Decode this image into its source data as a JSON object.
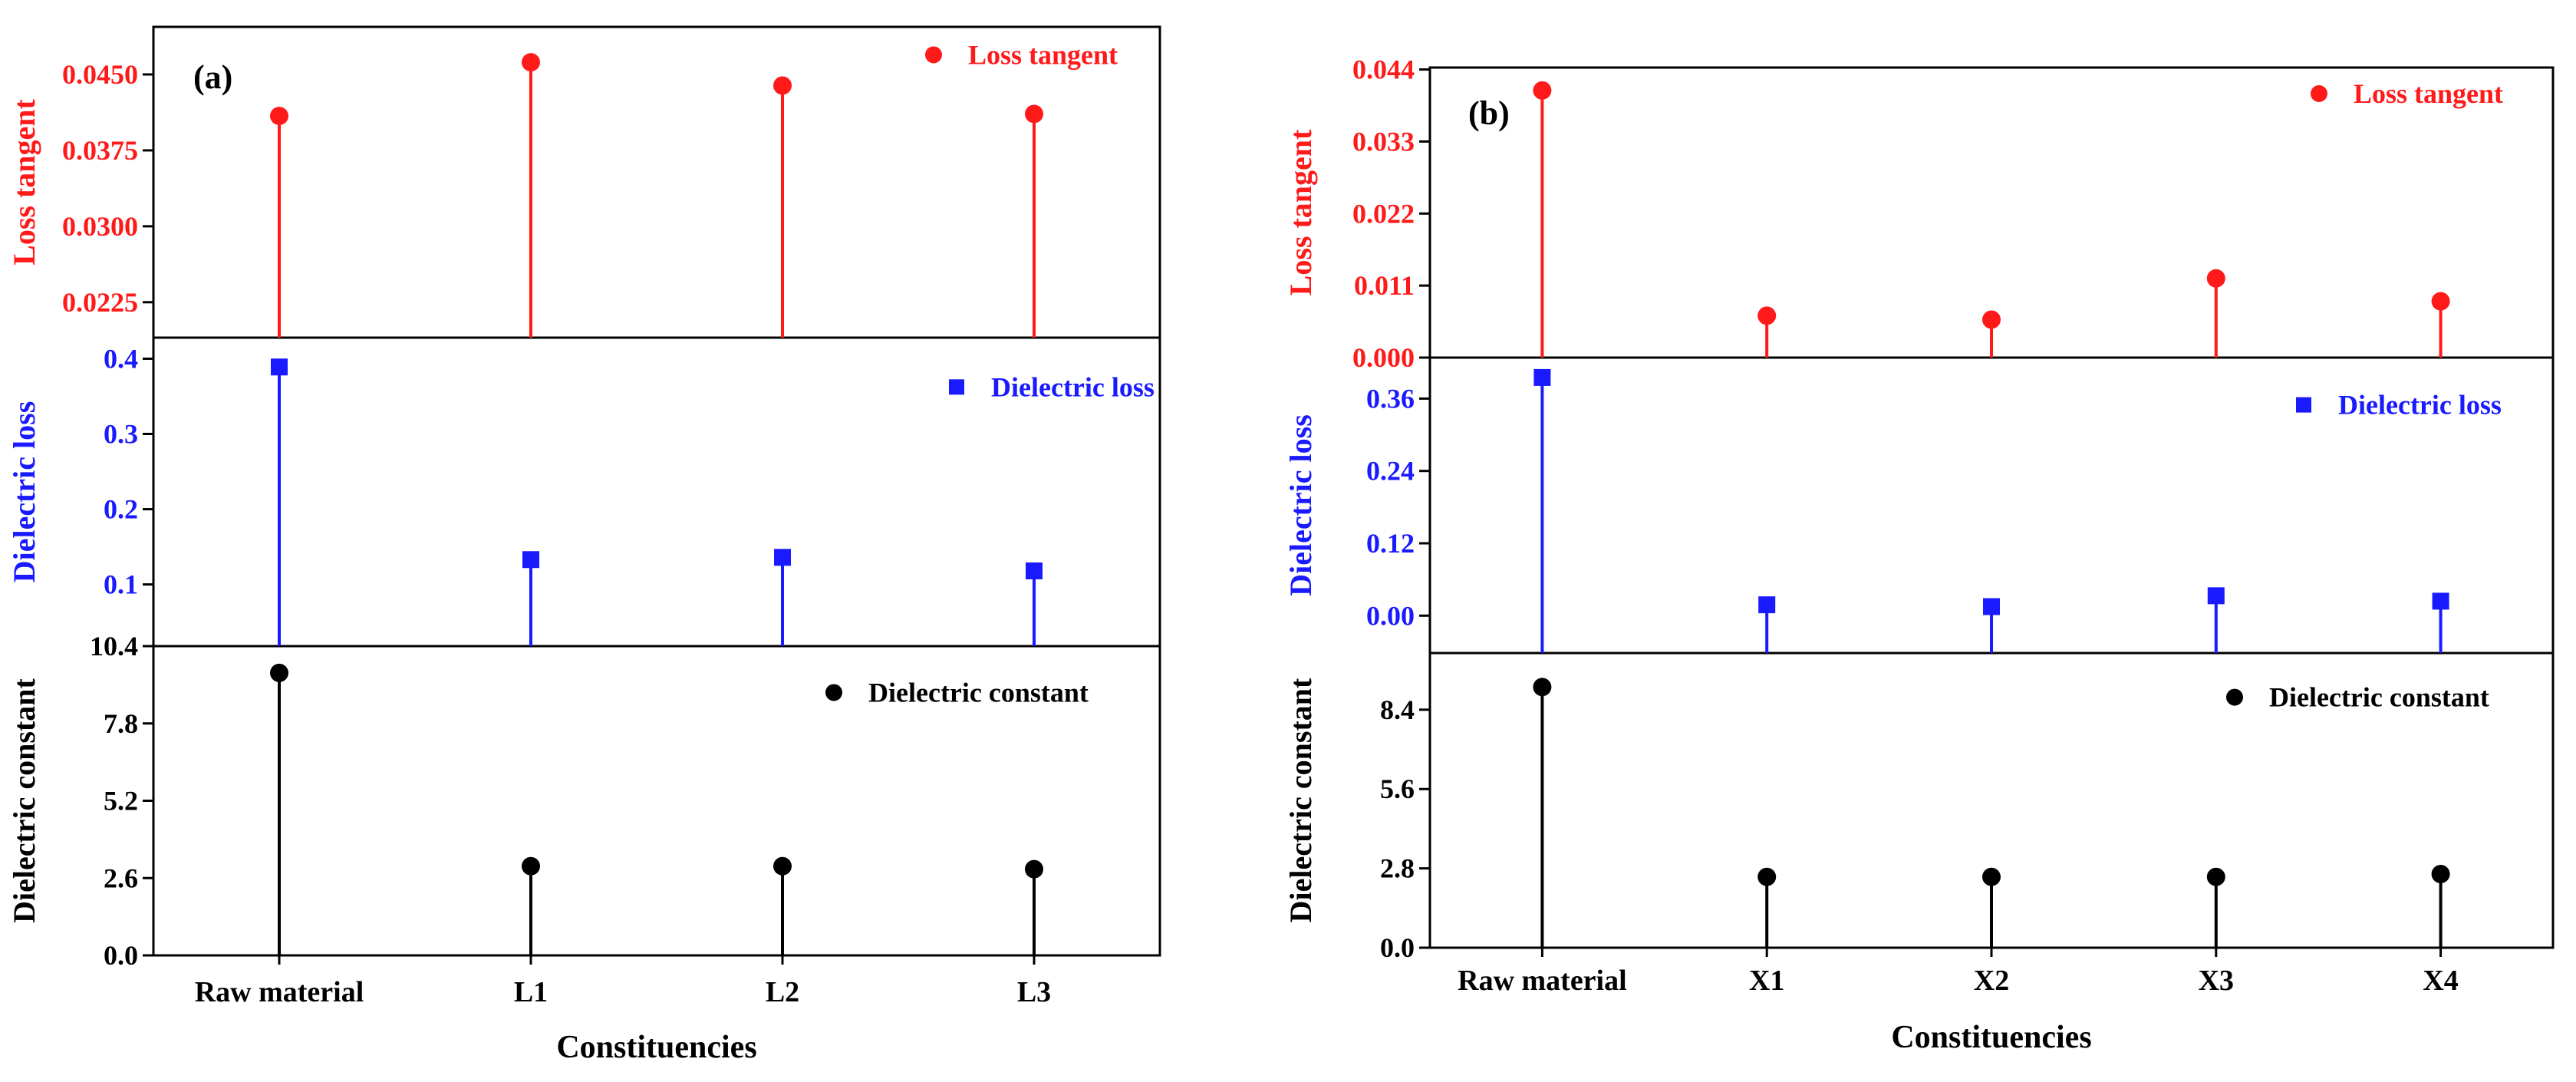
{
  "figure": {
    "panels_count": 2
  },
  "chart_data": [
    {
      "type": "stem",
      "panel_label": "(a)",
      "xlabel": "Constituencies",
      "categories": [
        "Raw material",
        "L1",
        "L2",
        "L3"
      ],
      "subplots": [
        {
          "name": "Loss tangent",
          "ylabel": "Loss tangent",
          "legend": "Loss tangent",
          "legend_position": "top-right",
          "marker": "circle",
          "color": "#ff1a1a",
          "ylim": [
            0.019,
            0.0497
          ],
          "ticks": [
            0.0225,
            0.03,
            0.0375,
            0.045
          ],
          "tick_labels": [
            "0.0225",
            "0.0300",
            "0.0375",
            "0.0450"
          ],
          "values": [
            0.0409,
            0.0462,
            0.0439,
            0.0411
          ]
        },
        {
          "name": "Dielectric loss",
          "ylabel": "Dielectric loss",
          "legend": "Dielectric loss",
          "legend_position": "top-right",
          "marker": "square",
          "color": "#1a1aff",
          "ylim": [
            0.018,
            0.428
          ],
          "ticks": [
            0.1,
            0.2,
            0.3,
            0.4
          ],
          "tick_labels": [
            "0.1",
            "0.2",
            "0.3",
            "0.4"
          ],
          "values": [
            0.389,
            0.133,
            0.136,
            0.118
          ]
        },
        {
          "name": "Dielectric constant",
          "ylabel": "Dielectric constant",
          "legend": "Dielectric constant",
          "legend_position": "top-right",
          "marker": "circle",
          "color": "#000000",
          "ylim": [
            0,
            10.4
          ],
          "ticks": [
            0.0,
            2.6,
            5.2,
            7.8,
            10.4
          ],
          "tick_labels": [
            "0.0",
            "2.6",
            "5.2",
            "7.8",
            "10.4"
          ],
          "values": [
            9.5,
            3.0,
            3.0,
            2.9
          ]
        }
      ]
    },
    {
      "type": "stem",
      "panel_label": "(b)",
      "xlabel": "Constituencies",
      "categories": [
        "Raw material",
        "X1",
        "X2",
        "X3",
        "X4"
      ],
      "subplots": [
        {
          "name": "Loss tangent",
          "ylabel": "Loss tangent",
          "legend": "Loss tangent",
          "legend_position": "top-right",
          "marker": "circle",
          "color": "#ff1a1a",
          "ylim": [
            0,
            0.0443
          ],
          "ticks": [
            0.0,
            0.011,
            0.022,
            0.033,
            0.044
          ],
          "tick_labels": [
            "0.000",
            "0.011",
            "0.022",
            "0.033",
            "0.044"
          ],
          "values": [
            0.0408,
            0.0064,
            0.0058,
            0.0121,
            0.0086
          ]
        },
        {
          "name": "Dielectric loss",
          "ylabel": "Dielectric loss",
          "legend": "Dielectric loss",
          "legend_position": "top-right",
          "marker": "square",
          "color": "#1a1aff",
          "ylim": [
            -0.062,
            0.428
          ],
          "ticks": [
            0.0,
            0.12,
            0.24,
            0.36
          ],
          "tick_labels": [
            "0.00",
            "0.12",
            "0.24",
            "0.36"
          ],
          "values": [
            0.395,
            0.018,
            0.015,
            0.033,
            0.024
          ]
        },
        {
          "name": "Dielectric constant",
          "ylabel": "Dielectric constant",
          "legend": "Dielectric constant",
          "legend_position": "top-right",
          "marker": "circle",
          "color": "#000000",
          "ylim": [
            0,
            10.4
          ],
          "ticks": [
            0.0,
            2.8,
            5.6,
            8.4
          ],
          "tick_labels": [
            "0.0",
            "2.8",
            "5.6",
            "8.4"
          ],
          "values": [
            9.2,
            2.5,
            2.5,
            2.5,
            2.6
          ]
        }
      ]
    }
  ]
}
